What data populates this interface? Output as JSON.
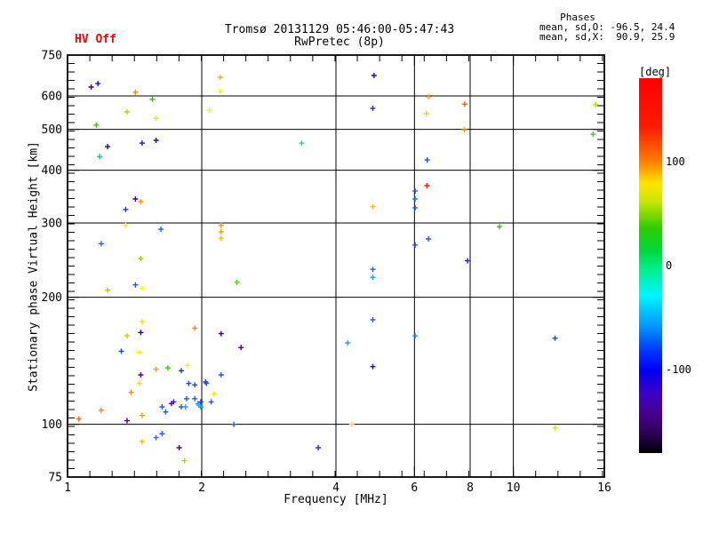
{
  "header": {
    "title": "Tromsø 20131129 05:46:00-05:47:43",
    "subtitle": "RwPretec (8p)",
    "hv_status": "HV Off",
    "phases_heading": "Phases",
    "phases_mean_o": "mean, sd,O: -96.5, 24.4",
    "phases_mean_x": "mean, sd,X:  90.9, 25.9"
  },
  "chart_data": {
    "type": "scatter",
    "title": "Tromsø 20131129 05:46:00-05:47:43",
    "subtitle": "RwPretec (8p)",
    "xlabel": "Frequency [MHz]",
    "ylabel": "Stationary phase Virtual Height [km]",
    "x_scale": "log",
    "y_scale": "log",
    "xlim": [
      1,
      16
    ],
    "ylim": [
      75,
      750
    ],
    "x_ticks": [
      1,
      2,
      4,
      6,
      8,
      10,
      16
    ],
    "y_ticks": [
      75,
      100,
      200,
      300,
      400,
      500,
      600,
      750
    ],
    "x_gridlines": [
      2,
      4,
      6,
      8,
      10
    ],
    "y_gridlines": [
      100,
      200,
      300,
      400,
      500,
      600
    ],
    "grid": true,
    "marker": "plus",
    "legend_position": "colorbar-right",
    "points_format": [
      "frequency_MHz",
      "virtual_height_km",
      "phase_color"
    ],
    "points": [
      [
        1.13,
        630,
        "#3300aa"
      ],
      [
        1.17,
        642,
        "#2200cc"
      ],
      [
        1.42,
        612,
        "#ff8800"
      ],
      [
        1.55,
        589,
        "#22cc00"
      ],
      [
        2.2,
        664,
        "#ffaa00"
      ],
      [
        2.2,
        615,
        "#ffee00"
      ],
      [
        1.36,
        550,
        "#aadd00"
      ],
      [
        2.08,
        555,
        "#ffee00"
      ],
      [
        1.58,
        531,
        "#ffdd00"
      ],
      [
        1.16,
        512,
        "#33cc00"
      ],
      [
        1.23,
        455,
        "#1100bb"
      ],
      [
        1.47,
        464,
        "#2211cc"
      ],
      [
        1.58,
        471,
        "#2200cc"
      ],
      [
        3.35,
        464,
        "#33bbff"
      ],
      [
        1.18,
        431,
        "#00cc88"
      ],
      [
        1.42,
        342,
        "#440099"
      ],
      [
        1.46,
        337,
        "#ff9900"
      ],
      [
        1.35,
        323,
        "#1133ee"
      ],
      [
        1.35,
        296,
        "#ffee00"
      ],
      [
        1.62,
        290,
        "#2266ff"
      ],
      [
        1.19,
        268,
        "#2266ff"
      ],
      [
        1.46,
        247,
        "#88dd00"
      ],
      [
        2.21,
        296,
        "#ff9900"
      ],
      [
        2.21,
        286,
        "#ff9900"
      ],
      [
        2.21,
        276,
        "#ffbb00"
      ],
      [
        2.4,
        217,
        "#44dd00"
      ],
      [
        2.21,
        164,
        "#330088"
      ],
      [
        2.45,
        152,
        "#440099"
      ],
      [
        1.42,
        214,
        "#2255ee"
      ],
      [
        1.47,
        210,
        "#ffee00"
      ],
      [
        1.23,
        208,
        "#99dd00"
      ],
      [
        1.47,
        175,
        "#ffdd00"
      ],
      [
        1.46,
        165,
        "#2200bb"
      ],
      [
        1.36,
        162,
        "#aadd00"
      ],
      [
        1.93,
        169,
        "#ff8800"
      ],
      [
        1.32,
        149,
        "#1144dd"
      ],
      [
        1.45,
        148,
        "#ffee00"
      ],
      [
        1.58,
        135,
        "#ff9900"
      ],
      [
        1.68,
        136,
        "#33cc00"
      ],
      [
        1.8,
        134,
        "#2233dd"
      ],
      [
        1.86,
        138,
        "#ffee00"
      ],
      [
        1.46,
        131,
        "#550099"
      ],
      [
        1.45,
        125,
        "#ffdd00"
      ],
      [
        1.87,
        125,
        "#2244ee"
      ],
      [
        1.93,
        124,
        "#2244ee"
      ],
      [
        2.04,
        126,
        "#2233cc"
      ],
      [
        1.39,
        119,
        "#ff8800"
      ],
      [
        1.93,
        115,
        "#2255ee"
      ],
      [
        1.85,
        115,
        "#2255ee"
      ],
      [
        1.73,
        113,
        "#2222cc"
      ],
      [
        1.71,
        112,
        "#5500aa"
      ],
      [
        1.63,
        110,
        "#2255ee"
      ],
      [
        1.66,
        107,
        "#2255ee"
      ],
      [
        1.8,
        110,
        "#2255ee"
      ],
      [
        1.84,
        110,
        "#3399ff"
      ],
      [
        1.96,
        112,
        "#3399ff"
      ],
      [
        1.97,
        111,
        "#00bbff"
      ],
      [
        1.19,
        108,
        "#ff8800"
      ],
      [
        1.06,
        103,
        "#ff6600"
      ],
      [
        1.47,
        105,
        "#ff9900"
      ],
      [
        1.36,
        102,
        "#440088"
      ],
      [
        1.63,
        95,
        "#2255ee"
      ],
      [
        1.58,
        93,
        "#2266ff"
      ],
      [
        1.47,
        91,
        "#ffbb00"
      ],
      [
        1.78,
        88,
        "#440088"
      ],
      [
        1.83,
        82,
        "#aadd00"
      ],
      [
        2.21,
        131,
        "#2255ee"
      ],
      [
        2.05,
        125,
        "#2255ee"
      ],
      [
        2.13,
        118,
        "#ffdd00"
      ],
      [
        1.99,
        113,
        "#2244ee"
      ],
      [
        1.99,
        110,
        "#00aaff"
      ],
      [
        2.1,
        113,
        "#2255ee"
      ],
      [
        2.36,
        100,
        "#2255ee"
      ],
      [
        3.65,
        88,
        "#2233dd"
      ],
      [
        4.87,
        671,
        "#2200cc"
      ],
      [
        4.84,
        561,
        "#4411cc"
      ],
      [
        6.45,
        597,
        "#ffaa00"
      ],
      [
        7.78,
        574,
        "#ff5500"
      ],
      [
        6.38,
        545,
        "#ffcc00"
      ],
      [
        15.3,
        572,
        "#99ee00"
      ],
      [
        7.76,
        499,
        "#ff9900"
      ],
      [
        15.1,
        487,
        "#22dd00"
      ],
      [
        6.41,
        423,
        "#2244ee"
      ],
      [
        6.4,
        368,
        "#ff1100"
      ],
      [
        6.02,
        357,
        "#2255ee"
      ],
      [
        6.02,
        342,
        "#2277ff"
      ],
      [
        6.02,
        326,
        "#2255ee"
      ],
      [
        4.84,
        328,
        "#ffbb00"
      ],
      [
        9.31,
        294,
        "#22cc00"
      ],
      [
        6.45,
        275,
        "#2255ee"
      ],
      [
        6.02,
        266,
        "#2255ee"
      ],
      [
        7.89,
        244,
        "#1122dd"
      ],
      [
        4.84,
        233,
        "#2255ee"
      ],
      [
        4.84,
        223,
        "#00aaff"
      ],
      [
        4.84,
        177,
        "#2255ee"
      ],
      [
        6.02,
        162,
        "#2288ff"
      ],
      [
        4.25,
        156,
        "#00aaff"
      ],
      [
        12.4,
        160,
        "#2244ee"
      ],
      [
        4.84,
        137,
        "#3300aa"
      ],
      [
        4.34,
        100,
        "#ffdd00"
      ],
      [
        12.4,
        98,
        "#ccee00"
      ]
    ]
  },
  "colorbar": {
    "label": "[deg]",
    "tick_values": [
      100,
      0,
      -100
    ],
    "range_deg": [
      -180,
      180
    ],
    "gradient_stops": [
      [
        0,
        "#ff0000"
      ],
      [
        13,
        "#fb1c00"
      ],
      [
        22,
        "#ff7a00"
      ],
      [
        28,
        "#ffe400"
      ],
      [
        33,
        "#c8e600"
      ],
      [
        40,
        "#2ecc00"
      ],
      [
        46,
        "#00d83c"
      ],
      [
        51,
        "#00f08c"
      ],
      [
        58,
        "#00f5ff"
      ],
      [
        66,
        "#0099ff"
      ],
      [
        73,
        "#0033ff"
      ],
      [
        78,
        "#0000f0"
      ],
      [
        84,
        "#3c00c8"
      ],
      [
        90,
        "#460087"
      ],
      [
        96,
        "#230046"
      ],
      [
        100,
        "#000000"
      ]
    ]
  }
}
